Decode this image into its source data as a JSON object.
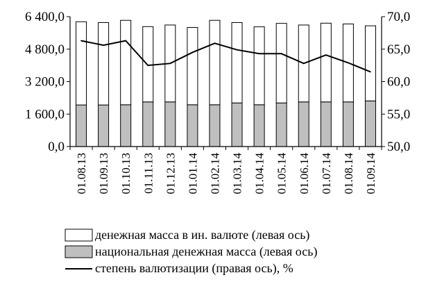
{
  "chart_data": {
    "type": "bar",
    "categories": [
      "01.08.13",
      "01.09.13",
      "01.10.13",
      "01.11.13",
      "01.12.13",
      "01.01.14",
      "01.02.14",
      "01.03.14",
      "01.04.14",
      "01.05.14",
      "01.06.14",
      "01.07.14",
      "01.08.14",
      "01.09.14"
    ],
    "series": [
      {
        "name": "национальная денежная масса (левая ось)",
        "kind": "stacked-bar",
        "axis": "left",
        "color": "#bfbfbf",
        "values": [
          2050,
          2050,
          2060,
          2200,
          2200,
          2060,
          2060,
          2150,
          2060,
          2150,
          2200,
          2200,
          2200,
          2250
        ]
      },
      {
        "name": "денежная масса в ин. валюте (левая ось)",
        "kind": "stacked-bar",
        "axis": "left",
        "color": "#ffffff",
        "values": [
          4100,
          4060,
          4160,
          3710,
          3790,
          3810,
          4160,
          3960,
          3840,
          3920,
          3790,
          3880,
          3840,
          3700
        ]
      },
      {
        "name": "степень валютизации (правая ось), %",
        "kind": "line",
        "axis": "right",
        "color": "#000000",
        "values": [
          66.3,
          65.6,
          66.3,
          62.5,
          62.8,
          64.5,
          65.9,
          64.9,
          64.3,
          64.3,
          62.8,
          64.1,
          62.9,
          61.5
        ]
      }
    ],
    "left_axis": {
      "min": 0,
      "max": 6400,
      "ticks": [
        "0,0",
        "1 600,0",
        "3 200,0",
        "4 800,0",
        "6 400,0"
      ]
    },
    "right_axis": {
      "min": 50,
      "max": 70,
      "ticks": [
        "50,0",
        "55,0",
        "60,0",
        "65,0",
        "70,0"
      ]
    },
    "legend_position": "bottom",
    "grid": false
  },
  "legend": [
    {
      "label": "денежная масса в ин. валюте (левая ось)",
      "symbol": "box",
      "fill": "#ffffff"
    },
    {
      "label": "национальная денежная масса (левая ось)",
      "symbol": "box",
      "fill": "#bfbfbf"
    },
    {
      "label": "степень валютизации (правая ось), %",
      "symbol": "line",
      "fill": "#000000"
    }
  ]
}
